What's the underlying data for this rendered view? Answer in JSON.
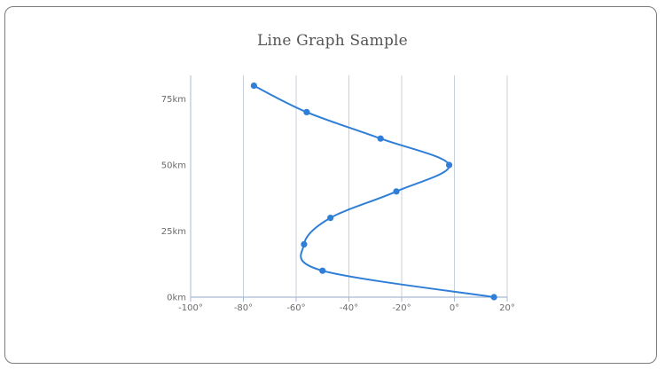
{
  "chart_data": {
    "type": "line",
    "title": "Line Graph Sample",
    "xlabel": "",
    "ylabel": "",
    "x_ticks": [
      "-100°",
      "-80°",
      "-60°",
      "-40°",
      "-20°",
      "0°",
      "20°"
    ],
    "y_ticks": [
      "0km",
      "25km",
      "50km",
      "75km"
    ],
    "x_tick_values": [
      -100,
      -80,
      -60,
      -40,
      -20,
      0,
      20
    ],
    "y_tick_values": [
      0,
      25,
      50,
      75
    ],
    "xlim": [
      -100,
      20
    ],
    "ylim": [
      0,
      85
    ],
    "grid": "vertical",
    "series": [
      {
        "color": "#2f7ed8",
        "points": [
          {
            "x": -76,
            "y": 80
          },
          {
            "x": -56,
            "y": 70
          },
          {
            "x": -28,
            "y": 60
          },
          {
            "x": -2,
            "y": 50
          },
          {
            "x": -22,
            "y": 40
          },
          {
            "x": -47,
            "y": 30
          },
          {
            "x": -57,
            "y": 20
          },
          {
            "x": -50,
            "y": 10
          },
          {
            "x": 15,
            "y": 0
          }
        ]
      }
    ]
  },
  "colors": {
    "series": "#2f7ed8",
    "grid": "#c9d0da",
    "axis": "#a8bad3",
    "border": "#7a7a7a"
  }
}
